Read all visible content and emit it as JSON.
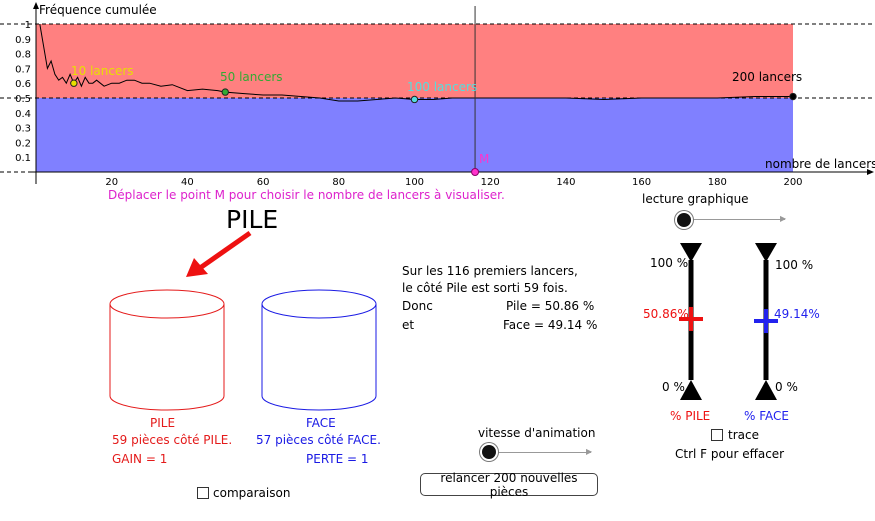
{
  "graph": {
    "ylabel": "Fréquence cumulée",
    "xlabel": "nombre de lancers",
    "y_ticks": [
      "1",
      "0.9",
      "0.8",
      "0.7",
      "0.6",
      "0.5",
      "0.4",
      "0.3",
      "0.2",
      "0.1"
    ],
    "x_ticks": [
      "20",
      "40",
      "60",
      "80",
      "100",
      "120",
      "140",
      "160",
      "180",
      "200"
    ],
    "point_M_label": "M",
    "labels": {
      "l10": "10 lancers",
      "l50": "50 lancers",
      "l100": "100 lancers",
      "l200": "200 lancers"
    },
    "colors": {
      "pile_zone": "#ff8080",
      "face_zone": "#8080ff",
      "l10": "#e8e000",
      "l50": "#33aa33",
      "l100": "#55dddd",
      "l200": "#000000",
      "M": "#ff33cc"
    },
    "instruction": "Déplacer le point M pour choisir le nombre de lancers à visualiser."
  },
  "chart_data": {
    "type": "line",
    "xlim": [
      0,
      200
    ],
    "ylim": [
      0,
      1
    ],
    "M_x": 116,
    "marked_points": [
      {
        "x": 10,
        "y": 0.6
      },
      {
        "x": 50,
        "y": 0.54
      },
      {
        "x": 100,
        "y": 0.49
      },
      {
        "x": 200,
        "y": 0.51
      }
    ],
    "series": [
      {
        "x": [
          1,
          2,
          3,
          4,
          5,
          6,
          7,
          8,
          9,
          10,
          11,
          12,
          13,
          14,
          15,
          16,
          18,
          20,
          22,
          24,
          26,
          28,
          30,
          33,
          36,
          40,
          44,
          48,
          50,
          55,
          60,
          65,
          70,
          75,
          80,
          85,
          90,
          95,
          100,
          105,
          110,
          116,
          120,
          130,
          140,
          150,
          160,
          170,
          180,
          190,
          200
        ],
        "values": [
          1,
          0.85,
          0.7,
          0.75,
          0.66,
          0.62,
          0.64,
          0.6,
          0.66,
          0.6,
          0.64,
          0.58,
          0.64,
          0.6,
          0.6,
          0.62,
          0.58,
          0.6,
          0.6,
          0.62,
          0.62,
          0.6,
          0.6,
          0.58,
          0.59,
          0.55,
          0.56,
          0.55,
          0.54,
          0.53,
          0.52,
          0.52,
          0.51,
          0.5,
          0.48,
          0.48,
          0.49,
          0.5,
          0.49,
          0.49,
          0.5,
          0.5,
          0.5,
          0.5,
          0.5,
          0.49,
          0.5,
          0.5,
          0.5,
          0.51,
          0.51
        ]
      }
    ]
  },
  "pile_label": "PILE",
  "text_block": {
    "line1": "Sur les 116 premiers lancers,",
    "line2": "le côté Pile est sorti  59  fois.",
    "donc": "Donc",
    "pile": "Pile =  50.86   %",
    "et": "et",
    "face": "Face =  49.14   %"
  },
  "lecture": {
    "label": "lecture graphique"
  },
  "gauges": {
    "top_left": "100 %",
    "top_right": "100 %",
    "bottom_left": "0 %",
    "bottom_right": "0 %",
    "pile_value": "50.86%",
    "face_value": "49.14%",
    "pile_fraction": 0.5086,
    "face_fraction": 0.4914,
    "pile_label": "% PILE",
    "face_label": "% FACE",
    "trace_label": "trace",
    "ctrl_note": "Ctrl F pour effacer"
  },
  "pile_cyl": {
    "title": "PILE",
    "pieces": "59 pièces côté PILE.",
    "gain": "GAIN =  1",
    "color": "#e41a1a"
  },
  "face_cyl": {
    "title": "FACE",
    "pieces": "57 pièces côté FACE.",
    "perte": "PERTE =  1",
    "color": "#1a1ae4"
  },
  "comparaison": "comparaison",
  "vitesse": {
    "label": "vitesse d'animation"
  },
  "relancer": "relancer 200 nouvelles pièces"
}
